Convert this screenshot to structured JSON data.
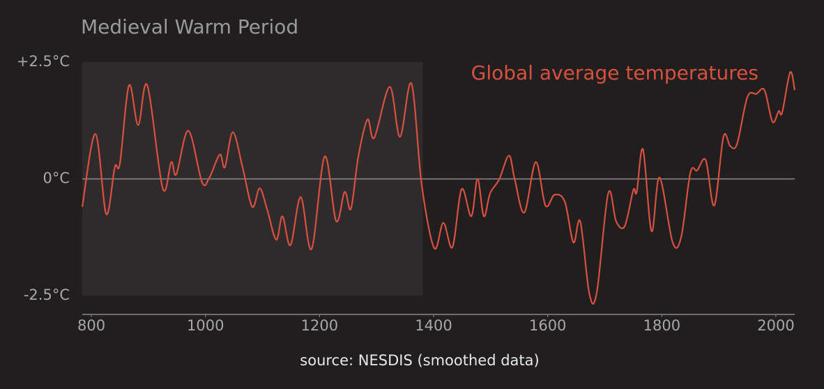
{
  "chart_data": {
    "type": "line",
    "title": "Medieval Warm Period",
    "caption": "source: NESDIS (smoothed data)",
    "highlight_x": [
      784,
      1381
    ],
    "x": [
      784,
      807,
      826,
      841,
      850,
      866,
      882,
      898,
      925,
      940,
      949,
      970,
      994,
      1007,
      1025,
      1034,
      1048,
      1065,
      1082,
      1095,
      1108,
      1124,
      1135,
      1149,
      1167,
      1186,
      1209,
      1229,
      1244,
      1255,
      1268,
      1284,
      1296,
      1323,
      1341,
      1361,
      1379,
      1401,
      1417,
      1433,
      1449,
      1466,
      1477,
      1488,
      1499,
      1515,
      1532,
      1542,
      1559,
      1579,
      1596,
      1612,
      1630,
      1645,
      1657,
      1673,
      1686,
      1706,
      1720,
      1735,
      1750,
      1756,
      1767,
      1782,
      1796,
      1819,
      1834,
      1850,
      1862,
      1877,
      1892,
      1908,
      1920,
      1932,
      1950,
      1966,
      1980,
      1994,
      2005,
      2011,
      2025,
      2033
    ],
    "series": [
      {
        "name": "Global average temperatures",
        "color": "#d9503f",
        "values": [
          -0.6,
          0.96,
          -0.75,
          0.25,
          0.33,
          2.0,
          1.15,
          2.0,
          -0.2,
          0.36,
          0.1,
          1.03,
          -0.07,
          0.03,
          0.52,
          0.25,
          1.0,
          0.25,
          -0.6,
          -0.2,
          -0.65,
          -1.3,
          -0.8,
          -1.42,
          -0.39,
          -1.5,
          0.48,
          -0.9,
          -0.28,
          -0.64,
          0.48,
          1.27,
          0.88,
          1.97,
          0.9,
          2.04,
          -0.12,
          -1.48,
          -0.94,
          -1.46,
          -0.22,
          -0.8,
          0,
          -0.8,
          -0.31,
          -0.01,
          0.5,
          0,
          -0.72,
          0.36,
          -0.57,
          -0.34,
          -0.49,
          -1.36,
          -0.91,
          -2.46,
          -2.43,
          -0.31,
          -0.91,
          -1.01,
          -0.24,
          -0.28,
          0.63,
          -1.12,
          0.03,
          -1.36,
          -1.24,
          0.13,
          0.18,
          0.4,
          -0.57,
          0.9,
          0.7,
          0.75,
          1.75,
          1.82,
          1.9,
          1.22,
          1.45,
          1.42,
          2.28,
          1.9
        ]
      }
    ],
    "xlim": [
      784,
      2033
    ],
    "xticks": [
      800,
      1000,
      1200,
      1400,
      1600,
      1800,
      2000
    ],
    "ylim": [
      -2.9,
      2.5
    ],
    "yticks": [
      {
        "value": 2.5,
        "label": "+2.5°C"
      },
      {
        "value": 0,
        "label": "0°C"
      },
      {
        "value": -2.5,
        "label": "-2.5°C"
      }
    ],
    "zero_line": true
  }
}
